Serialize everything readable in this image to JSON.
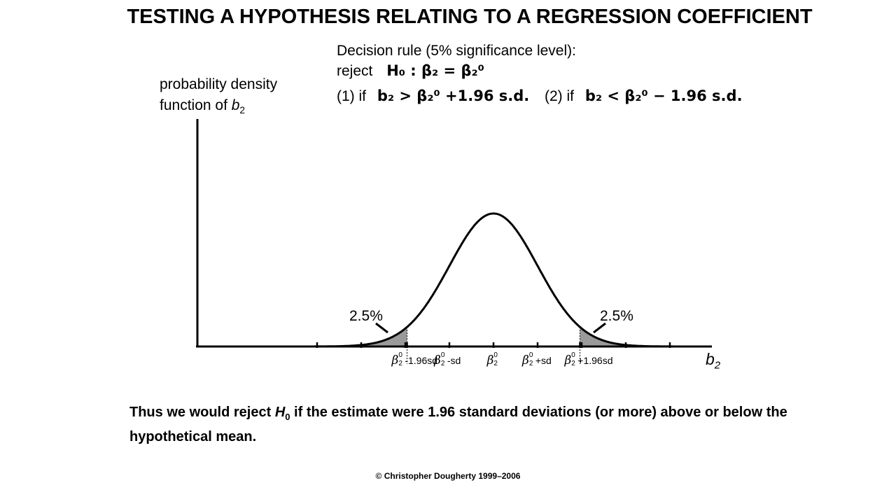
{
  "title": "TESTING A HYPOTHESIS RELATING TO A REGRESSION COEFFICIENT",
  "decision_rule": {
    "heading": "Decision rule (5% significance level):",
    "reject": "reject",
    "null_hypothesis": "H₀ : β₂ = β₂⁰",
    "condition1_prefix": "(1) if",
    "condition1": "b₂ > β₂⁰ +1.96 s.d.",
    "condition2_prefix": "(2) if",
    "condition2": "b₂ < β₂⁰ − 1.96 s.d."
  },
  "y_label_line1": "probability density",
  "y_label_line2_prefix": "function of b",
  "y_label_line2_sub": "2",
  "x_label": "b",
  "x_label_sub": "2",
  "tail_left_label": "2.5%",
  "tail_right_label": "2.5%",
  "tick_labels": [
    {
      "sym": "β",
      "sup": "0",
      "sub": "2",
      "suffix": "-1.96sd"
    },
    {
      "sym": "β",
      "sup": "0",
      "sub": "2",
      "suffix": "-sd"
    },
    {
      "sym": "β",
      "sup": "0",
      "sub": "2",
      "suffix": ""
    },
    {
      "sym": "β",
      "sup": "0",
      "sub": "2",
      "suffix": "+sd"
    },
    {
      "sym": "β",
      "sup": "0",
      "sub": "2",
      "suffix": "+1.96sd"
    }
  ],
  "conclusion_text_1": "Thus we would reject ",
  "conclusion_h": "H",
  "conclusion_h_sub": "0",
  "conclusion_text_2": " if the estimate were 1.96 standard deviations (or more) above or below the hypothetical mean.",
  "copyright": "© Christopher  Dougherty 1999–2006",
  "chart_data": {
    "type": "area",
    "distribution": "normal",
    "mean": 0,
    "sd": 1,
    "critical_values": [
      -1.96,
      1.96
    ],
    "tail_probabilities": [
      0.025,
      0.025
    ],
    "x_ticks": [
      -4,
      -3,
      -2,
      -1.96,
      -1,
      0,
      1,
      1.96,
      2,
      3,
      4
    ],
    "grid": false
  }
}
